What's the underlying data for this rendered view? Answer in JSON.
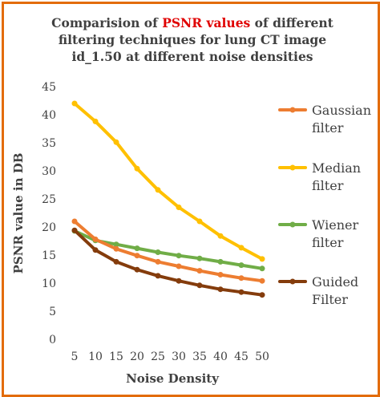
{
  "chart_data": {
    "type": "line",
    "title_parts": [
      "Comparision of ",
      "PSNR values",
      " of different",
      "filtering  techniques for lung CT image",
      "id_1.50 at different noise densities"
    ],
    "xlabel": "Noise Density",
    "ylabel": "PSNR value in DB",
    "x": [
      5,
      10,
      15,
      20,
      25,
      30,
      35,
      40,
      45,
      50
    ],
    "ylim": [
      0,
      45
    ],
    "yticks": [
      0,
      5,
      10,
      15,
      20,
      25,
      30,
      35,
      40,
      45
    ],
    "grid": false,
    "legend_position": "right",
    "series": [
      {
        "name": "Gaussian filter",
        "legend_lines": [
          "Gaussian",
          "filter"
        ],
        "color": "#ed7d31",
        "values": [
          21.0,
          17.8,
          16.1,
          14.9,
          13.8,
          13.0,
          12.2,
          11.5,
          10.9,
          10.4
        ]
      },
      {
        "name": "Median filter",
        "legend_lines": [
          "Median",
          "filter"
        ],
        "color": "#ffc000",
        "values": [
          42.0,
          38.8,
          35.1,
          30.4,
          26.6,
          23.5,
          21.0,
          18.4,
          16.3,
          14.3
        ]
      },
      {
        "name": "Wiener filter",
        "legend_lines": [
          "Wiener",
          "filter"
        ],
        "color": "#70ad47",
        "values": [
          19.3,
          17.6,
          16.9,
          16.2,
          15.5,
          14.9,
          14.4,
          13.8,
          13.2,
          12.6
        ]
      },
      {
        "name": "Guided Filter",
        "legend_lines": [
          "Guided",
          "Filter"
        ],
        "color": "#843c0c",
        "values": [
          19.4,
          15.9,
          13.8,
          12.4,
          11.3,
          10.4,
          9.6,
          8.9,
          8.4,
          7.9
        ]
      }
    ]
  }
}
